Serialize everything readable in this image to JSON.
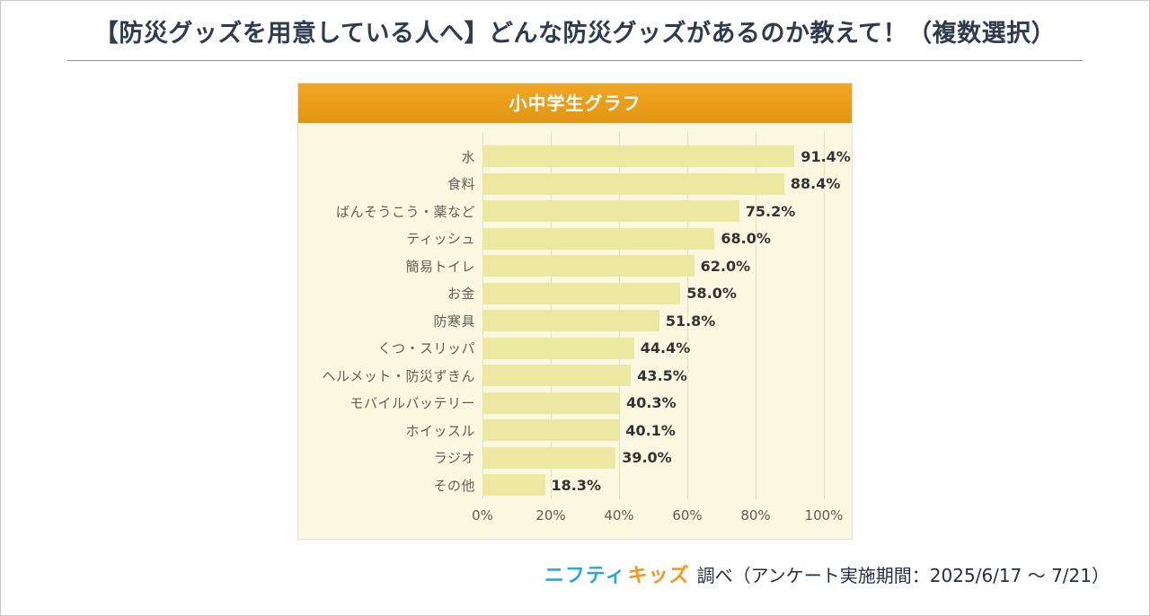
{
  "header": {
    "title": "【防災グッズを用意している人へ】どんな防災グッズがあるのか教えて！（複数選択）"
  },
  "chart_data": {
    "type": "bar",
    "orientation": "horizontal",
    "title": "小中学生グラフ",
    "categories": [
      "水",
      "食料",
      "ばんそうこう・薬など",
      "ティッシュ",
      "簡易トイレ",
      "お金",
      "防寒具",
      "くつ・スリッパ",
      "ヘルメット・防災ずきん",
      "モバイルバッテリー",
      "ホイッスル",
      "ラジオ",
      "その他"
    ],
    "values": [
      91.4,
      88.4,
      75.2,
      68.0,
      62.0,
      58.0,
      51.8,
      44.4,
      43.5,
      40.3,
      40.1,
      39.0,
      18.3
    ],
    "value_labels": [
      "91.4%",
      "88.4%",
      "75.2%",
      "68.0%",
      "62.0%",
      "58.0%",
      "51.8%",
      "44.4%",
      "43.5%",
      "40.3%",
      "40.1%",
      "39.0%",
      "18.3%"
    ],
    "x_ticks": [
      "0%",
      "20%",
      "40%",
      "60%",
      "80%",
      "100%"
    ],
    "xlim": [
      0,
      100
    ],
    "grid": true,
    "legend": "none",
    "bar_color": "#ece8a2",
    "header_color": "#e89b16",
    "plot_bg_color": "#fcf7e0"
  },
  "footer": {
    "logo_nifty": "ニフティ",
    "logo_kids": "キッズ",
    "note": "調べ（アンケート実施期間：2025/6/17 ～ 7/21）"
  }
}
